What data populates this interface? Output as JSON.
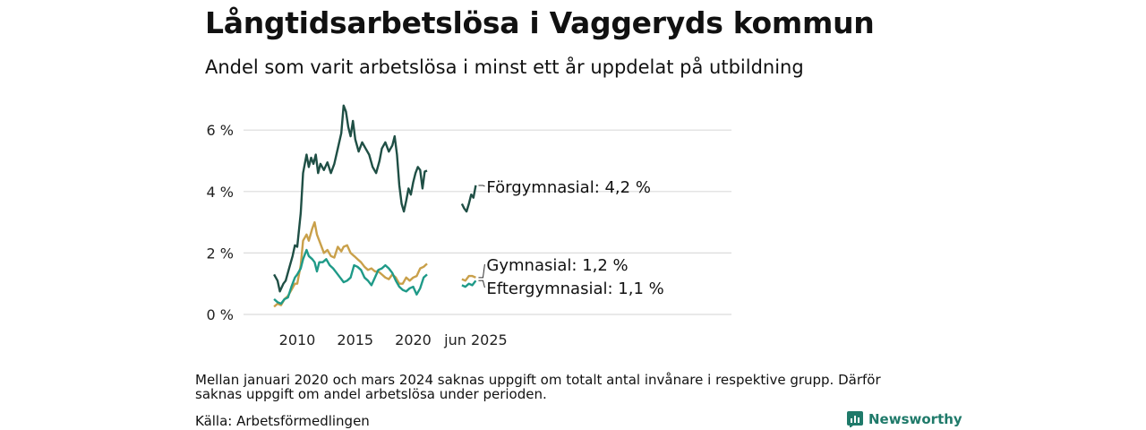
{
  "header": {
    "title": "Långtidsarbetslösa i Vaggeryds kommun",
    "subtitle": "Andel som varit arbetslösa i minst ett år uppdelat på utbildning"
  },
  "footer": {
    "note": "Mellan januari 2020 och mars 2024 saknas uppgift om totalt antal invånare i respektive grupp. Därför saknas uppgift om andel arbetslösa under perioden.",
    "source": "Källa: Arbetsförmedlingen",
    "brand": "Newsworthy",
    "brand_color": "#1f7a6a"
  },
  "chart_data": {
    "type": "line",
    "y_ticks": [
      "0 %",
      "2 %",
      "4 %",
      "6 %"
    ],
    "ylim": [
      0,
      7
    ],
    "x_ticks": [
      "2010",
      "2015",
      "2020",
      "jun 2025"
    ],
    "grid": "horizontal",
    "series": [
      {
        "name": "Förgymnasial",
        "end_label": "Förgymnasial: 4,2 %",
        "color": "#1f4f45",
        "segments": [
          [
            [
              2008.0,
              1.3
            ],
            [
              2008.3,
              1.1
            ],
            [
              2008.5,
              0.75
            ],
            [
              2008.8,
              1.0
            ],
            [
              2009.0,
              1.1
            ],
            [
              2009.3,
              1.5
            ],
            [
              2009.6,
              1.9
            ],
            [
              2009.8,
              2.25
            ],
            [
              2010.0,
              2.2
            ],
            [
              2010.3,
              3.3
            ],
            [
              2010.5,
              4.6
            ],
            [
              2010.8,
              5.2
            ],
            [
              2011.0,
              4.8
            ],
            [
              2011.2,
              5.1
            ],
            [
              2011.4,
              4.9
            ],
            [
              2011.6,
              5.2
            ],
            [
              2011.8,
              4.6
            ],
            [
              2012.0,
              4.9
            ],
            [
              2012.3,
              4.7
            ],
            [
              2012.6,
              4.95
            ],
            [
              2012.9,
              4.6
            ],
            [
              2013.2,
              4.9
            ],
            [
              2013.5,
              5.4
            ],
            [
              2013.8,
              5.9
            ],
            [
              2014.0,
              6.8
            ],
            [
              2014.2,
              6.6
            ],
            [
              2014.4,
              6.1
            ],
            [
              2014.6,
              5.8
            ],
            [
              2014.8,
              6.3
            ],
            [
              2015.0,
              5.7
            ],
            [
              2015.3,
              5.3
            ],
            [
              2015.6,
              5.6
            ],
            [
              2015.9,
              5.4
            ],
            [
              2016.2,
              5.2
            ],
            [
              2016.5,
              4.8
            ],
            [
              2016.8,
              4.6
            ],
            [
              2017.1,
              5.0
            ],
            [
              2017.3,
              5.4
            ],
            [
              2017.6,
              5.6
            ],
            [
              2017.9,
              5.3
            ],
            [
              2018.2,
              5.5
            ],
            [
              2018.4,
              5.8
            ],
            [
              2018.6,
              5.2
            ],
            [
              2018.8,
              4.2
            ],
            [
              2019.0,
              3.6
            ],
            [
              2019.2,
              3.35
            ],
            [
              2019.4,
              3.7
            ],
            [
              2019.6,
              4.1
            ],
            [
              2019.8,
              3.9
            ],
            [
              2020.0,
              4.3
            ],
            [
              2020.2,
              4.6
            ],
            [
              2020.4,
              4.8
            ],
            [
              2020.6,
              4.7
            ],
            [
              2020.8,
              4.1
            ],
            [
              2021.0,
              4.65
            ],
            [
              2021.2,
              4.68
            ]
          ],
          [
            [
              2024.2,
              3.6
            ],
            [
              2024.4,
              3.45
            ],
            [
              2024.6,
              3.35
            ],
            [
              2024.8,
              3.6
            ],
            [
              2025.0,
              3.9
            ],
            [
              2025.2,
              3.8
            ],
            [
              2025.4,
              4.2
            ]
          ]
        ]
      },
      {
        "name": "Gymnasial",
        "end_label": "Gymnasial: 1,2 %",
        "color": "#c9a04a",
        "segments": [
          [
            [
              2008.0,
              0.25
            ],
            [
              2008.3,
              0.35
            ],
            [
              2008.6,
              0.3
            ],
            [
              2008.9,
              0.5
            ],
            [
              2009.2,
              0.6
            ],
            [
              2009.5,
              0.8
            ],
            [
              2009.8,
              1.0
            ],
            [
              2010.0,
              1.0
            ],
            [
              2010.3,
              1.6
            ],
            [
              2010.5,
              2.4
            ],
            [
              2010.8,
              2.6
            ],
            [
              2011.0,
              2.4
            ],
            [
              2011.3,
              2.8
            ],
            [
              2011.5,
              3.0
            ],
            [
              2011.7,
              2.6
            ],
            [
              2012.0,
              2.3
            ],
            [
              2012.3,
              2.0
            ],
            [
              2012.6,
              2.1
            ],
            [
              2012.9,
              1.9
            ],
            [
              2013.2,
              1.85
            ],
            [
              2013.5,
              2.2
            ],
            [
              2013.8,
              2.05
            ],
            [
              2014.0,
              2.2
            ],
            [
              2014.3,
              2.25
            ],
            [
              2014.6,
              2.0
            ],
            [
              2014.9,
              1.9
            ],
            [
              2015.2,
              1.8
            ],
            [
              2015.5,
              1.7
            ],
            [
              2015.8,
              1.55
            ],
            [
              2016.1,
              1.45
            ],
            [
              2016.4,
              1.5
            ],
            [
              2016.7,
              1.4
            ],
            [
              2017.0,
              1.4
            ],
            [
              2017.3,
              1.3
            ],
            [
              2017.6,
              1.2
            ],
            [
              2017.9,
              1.15
            ],
            [
              2018.2,
              1.3
            ],
            [
              2018.5,
              1.2
            ],
            [
              2018.8,
              1.0
            ],
            [
              2019.1,
              1.0
            ],
            [
              2019.4,
              1.2
            ],
            [
              2019.7,
              1.1
            ],
            [
              2020.0,
              1.2
            ],
            [
              2020.3,
              1.25
            ],
            [
              2020.6,
              1.5
            ],
            [
              2020.9,
              1.55
            ],
            [
              2021.2,
              1.65
            ]
          ],
          [
            [
              2024.2,
              1.15
            ],
            [
              2024.5,
              1.1
            ],
            [
              2024.8,
              1.25
            ],
            [
              2025.1,
              1.25
            ],
            [
              2025.4,
              1.2
            ]
          ]
        ]
      },
      {
        "name": "Eftergymnasial",
        "end_label": "Eftergymnasial: 1,1 %",
        "color": "#1f9a88",
        "segments": [
          [
            [
              2008.0,
              0.5
            ],
            [
              2008.3,
              0.4
            ],
            [
              2008.6,
              0.35
            ],
            [
              2008.9,
              0.5
            ],
            [
              2009.2,
              0.55
            ],
            [
              2009.5,
              0.9
            ],
            [
              2009.8,
              1.2
            ],
            [
              2010.0,
              1.3
            ],
            [
              2010.3,
              1.5
            ],
            [
              2010.5,
              1.8
            ],
            [
              2010.8,
              2.1
            ],
            [
              2011.0,
              1.9
            ],
            [
              2011.3,
              1.8
            ],
            [
              2011.5,
              1.7
            ],
            [
              2011.7,
              1.4
            ],
            [
              2011.9,
              1.7
            ],
            [
              2012.2,
              1.7
            ],
            [
              2012.5,
              1.8
            ],
            [
              2012.8,
              1.6
            ],
            [
              2013.1,
              1.5
            ],
            [
              2013.4,
              1.35
            ],
            [
              2013.7,
              1.2
            ],
            [
              2014.0,
              1.05
            ],
            [
              2014.3,
              1.1
            ],
            [
              2014.6,
              1.2
            ],
            [
              2014.9,
              1.6
            ],
            [
              2015.2,
              1.55
            ],
            [
              2015.5,
              1.45
            ],
            [
              2015.8,
              1.2
            ],
            [
              2016.1,
              1.1
            ],
            [
              2016.4,
              0.95
            ],
            [
              2016.7,
              1.2
            ],
            [
              2017.0,
              1.45
            ],
            [
              2017.3,
              1.5
            ],
            [
              2017.6,
              1.6
            ],
            [
              2017.9,
              1.5
            ],
            [
              2018.2,
              1.35
            ],
            [
              2018.5,
              1.1
            ],
            [
              2018.8,
              0.9
            ],
            [
              2019.1,
              0.8
            ],
            [
              2019.4,
              0.75
            ],
            [
              2019.7,
              0.85
            ],
            [
              2020.0,
              0.9
            ],
            [
              2020.3,
              0.65
            ],
            [
              2020.6,
              0.85
            ],
            [
              2020.9,
              1.2
            ],
            [
              2021.2,
              1.3
            ]
          ],
          [
            [
              2024.2,
              0.95
            ],
            [
              2024.5,
              0.9
            ],
            [
              2024.8,
              1.0
            ],
            [
              2025.1,
              0.95
            ],
            [
              2025.4,
              1.1
            ]
          ]
        ]
      }
    ]
  }
}
